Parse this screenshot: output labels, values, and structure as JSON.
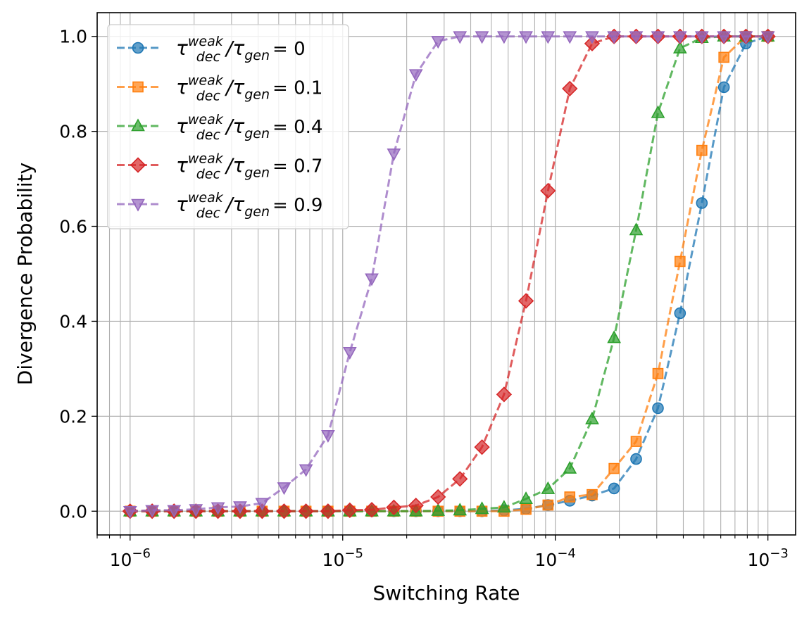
{
  "chart_data": {
    "type": "line",
    "title": "",
    "xlabel": "Switching Rate",
    "ylabel": "Divergence Probability",
    "xscale": "log",
    "xlim": [
      7e-07,
      0.00135
    ],
    "ylim": [
      -0.05,
      1.05
    ],
    "grid": true,
    "legend_position": "top-left",
    "xticks": [
      {
        "value": 1e-06,
        "base": "10",
        "exp": "−6"
      },
      {
        "value": 1e-05,
        "base": "10",
        "exp": "−5"
      },
      {
        "value": 0.0001,
        "base": "10",
        "exp": "−4"
      },
      {
        "value": 0.001,
        "base": "10",
        "exp": "−3"
      }
    ],
    "yticks": [
      {
        "value": 0.0,
        "label": "0.0"
      },
      {
        "value": 0.2,
        "label": "0.2"
      },
      {
        "value": 0.4,
        "label": "0.4"
      },
      {
        "value": 0.6,
        "label": "0.6"
      },
      {
        "value": 0.8,
        "label": "0.8"
      },
      {
        "value": 1.0,
        "label": "1.0"
      }
    ],
    "x": [
      1e-06,
      1.27e-06,
      1.61e-06,
      2.04e-06,
      2.59e-06,
      3.29e-06,
      4.18e-06,
      5.3e-06,
      6.72e-06,
      8.53e-06,
      1.08e-05,
      1.37e-05,
      1.74e-05,
      2.21e-05,
      2.81e-05,
      3.56e-05,
      4.52e-05,
      5.74e-05,
      7.28e-05,
      9.24e-05,
      0.000117,
      0.000149,
      0.000189,
      0.00024,
      0.000304,
      0.000386,
      0.000489,
      0.000621,
      0.000788,
      0.001
    ],
    "series": [
      {
        "name_prefix": "τ",
        "name_sup1": "weak",
        "name_sub1": "dec",
        "name_mid": "/τ",
        "name_sub2": "gen",
        "name_value": "= 0",
        "color": "#1f77b4",
        "marker": "circle",
        "values": [
          0.0,
          0.0,
          0.0,
          0.0,
          0.0,
          0.0,
          0.0,
          0.0,
          0.0,
          0.0,
          0.0,
          0.0,
          0.0,
          0.0,
          0.0,
          0.0,
          0.0,
          0.002,
          0.005,
          0.013,
          0.022,
          0.033,
          0.048,
          0.11,
          0.217,
          0.417,
          0.649,
          0.893,
          0.985,
          1.0
        ]
      },
      {
        "name_prefix": "τ",
        "name_sup1": "weak",
        "name_sub1": "dec",
        "name_mid": "/τ",
        "name_sub2": "gen",
        "name_value": "= 0.1",
        "color": "#ff7f0e",
        "marker": "square",
        "values": [
          0.0,
          0.0,
          0.0,
          0.0,
          0.0,
          0.0,
          0.0,
          0.0,
          0.0,
          0.0,
          0.0,
          0.0,
          0.0,
          0.0,
          0.0,
          0.0,
          0.0,
          0.0,
          0.004,
          0.013,
          0.03,
          0.035,
          0.09,
          0.147,
          0.29,
          0.526,
          0.76,
          0.956,
          1.0,
          1.0
        ]
      },
      {
        "name_prefix": "τ",
        "name_sup1": "weak",
        "name_sub1": "dec",
        "name_mid": "/τ",
        "name_sub2": "gen",
        "name_value": "= 0.4",
        "color": "#2ca02c",
        "marker": "triangle-up",
        "values": [
          0.0,
          0.0,
          0.0,
          0.0,
          0.0,
          0.0,
          0.0,
          0.0,
          0.0,
          0.0,
          0.0,
          0.0,
          0.0,
          0.0,
          0.001,
          0.002,
          0.005,
          0.008,
          0.026,
          0.047,
          0.09,
          0.194,
          0.365,
          0.592,
          0.839,
          0.975,
          0.997,
          1.0,
          1.0,
          1.0
        ]
      },
      {
        "name_prefix": "τ",
        "name_sup1": "weak",
        "name_sub1": "dec",
        "name_mid": "/τ",
        "name_sub2": "gen",
        "name_value": "= 0.7",
        "color": "#d62728",
        "marker": "diamond",
        "values": [
          0.0,
          0.0,
          0.0,
          0.0,
          0.0,
          0.0,
          0.0,
          0.0,
          0.0,
          0.0,
          0.002,
          0.003,
          0.008,
          0.012,
          0.03,
          0.068,
          0.135,
          0.246,
          0.443,
          0.675,
          0.89,
          0.985,
          1.0,
          1.0,
          1.0,
          1.0,
          1.0,
          1.0,
          1.0,
          1.0
        ]
      },
      {
        "name_prefix": "τ",
        "name_sup1": "weak",
        "name_sub1": "dec",
        "name_mid": "/τ",
        "name_sub2": "gen",
        "name_value": "= 0.9",
        "color": "#9467bd",
        "marker": "triangle-down",
        "values": [
          0.0,
          0.002,
          0.002,
          0.004,
          0.008,
          0.01,
          0.017,
          0.05,
          0.088,
          0.16,
          0.335,
          0.49,
          0.753,
          0.92,
          0.99,
          1.0,
          1.0,
          1.0,
          1.0,
          1.0,
          1.0,
          1.0,
          1.0,
          1.0,
          1.0,
          1.0,
          1.0,
          1.0,
          1.0,
          1.0
        ]
      }
    ]
  }
}
